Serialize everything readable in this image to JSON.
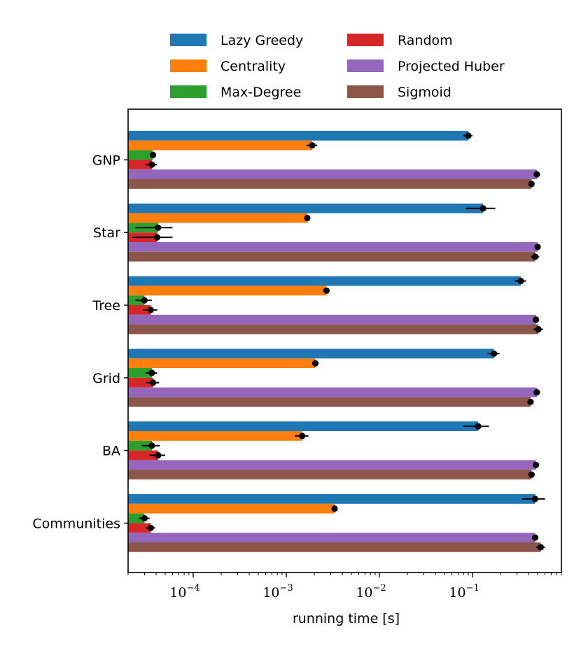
{
  "chart_data": {
    "type": "bar",
    "orientation": "horizontal",
    "x_scale": "log",
    "xlabel": "running time [s]",
    "ylabel": "",
    "xlim": [
      2e-05,
      0.9
    ],
    "x_ticks": [
      {
        "value": 0.0001,
        "base": "10",
        "exp": "−4"
      },
      {
        "value": 0.001,
        "base": "10",
        "exp": "−3"
      },
      {
        "value": 0.01,
        "base": "10",
        "exp": "−2"
      },
      {
        "value": 0.1,
        "base": "10",
        "exp": "−1"
      }
    ],
    "categories": [
      "GNP",
      "Star",
      "Tree",
      "Grid",
      "BA",
      "Communities"
    ],
    "legend_location": "upper-center-outside",
    "series": [
      {
        "name": "Lazy Greedy",
        "color": "#1f77b4",
        "values": [
          0.09,
          0.13,
          0.33,
          0.17,
          0.115,
          0.47
        ],
        "errors": [
          0.01,
          0.045,
          0.045,
          0.025,
          0.035,
          0.13
        ]
      },
      {
        "name": "Centrality",
        "color": "#ff7f0e",
        "values": [
          0.0019,
          0.00168,
          0.0027,
          0.00205,
          0.00148,
          0.0033
        ],
        "errors": [
          0.00025,
          0.0,
          0.0,
          0.0,
          0.00025,
          0.0
        ]
      },
      {
        "name": "Max-Degree",
        "color": "#2ca02c",
        "values": [
          3.7e-05,
          4.2e-05,
          3e-05,
          3.6e-05,
          3.6e-05,
          3e-05
        ],
        "errors": [
          0.0,
          1.8e-05,
          6e-06,
          5e-06,
          8e-06,
          4e-06
        ]
      },
      {
        "name": "Random",
        "color": "#d62728",
        "values": [
          3.6e-05,
          4.1e-05,
          3.5e-05,
          3.7e-05,
          4.2e-05,
          3.5e-05
        ],
        "errors": [
          5e-06,
          1.9e-05,
          6e-06,
          6e-06,
          8e-06,
          4e-06
        ]
      },
      {
        "name": "Projected Huber",
        "color": "#9467bd",
        "values": [
          0.49,
          0.5,
          0.48,
          0.49,
          0.48,
          0.47
        ],
        "errors": [
          0.0,
          0.0,
          0.0,
          0.0,
          0.0,
          0.0
        ]
      },
      {
        "name": "Sigmoid",
        "color": "#8c564b",
        "values": [
          0.43,
          0.47,
          0.51,
          0.42,
          0.43,
          0.54
        ],
        "errors": [
          0.03,
          0.05,
          0.06,
          0.03,
          0.0,
          0.06
        ]
      }
    ],
    "legend": [
      {
        "label": "Lazy Greedy",
        "color": "#1f77b4"
      },
      {
        "label": "Centrality",
        "color": "#ff7f0e"
      },
      {
        "label": "Max-Degree",
        "color": "#2ca02c"
      },
      {
        "label": "Random",
        "color": "#d62728"
      },
      {
        "label": "Projected Huber",
        "color": "#9467bd"
      },
      {
        "label": "Sigmoid",
        "color": "#8c564b"
      }
    ]
  }
}
